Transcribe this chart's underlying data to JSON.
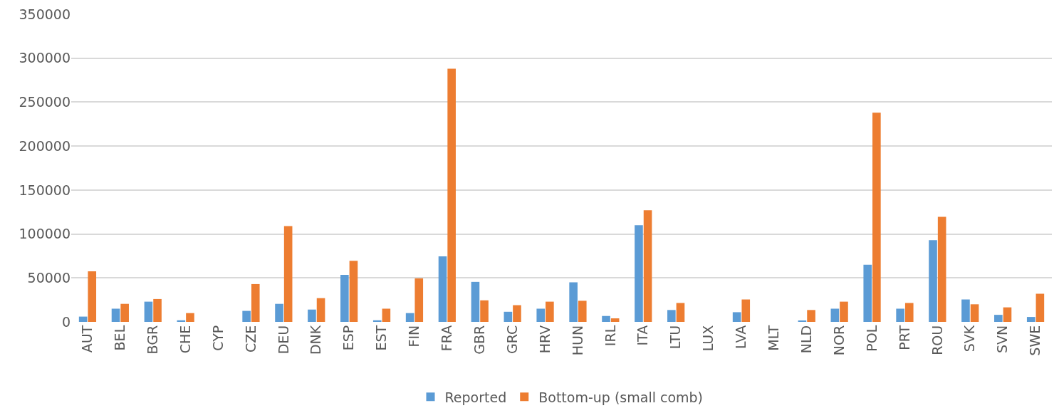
{
  "chart_data": {
    "type": "bar",
    "categories": [
      "AUT",
      "BEL",
      "BGR",
      "CHE",
      "CYP",
      "CZE",
      "DEU",
      "DNK",
      "ESP",
      "EST",
      "FIN",
      "FRA",
      "GBR",
      "GRC",
      "HRV",
      "HUN",
      "IRL",
      "ITA",
      "LTU",
      "LUX",
      "LVA",
      "MLT",
      "NLD",
      "NOR",
      "POL",
      "PRT",
      "ROU",
      "SVK",
      "SVN",
      "SWE"
    ],
    "series": [
      {
        "name": "Reported",
        "color": "#5b9bd5",
        "values": [
          6000,
          15000,
          23000,
          1800,
          0,
          12500,
          20500,
          14000,
          53500,
          1800,
          10000,
          74500,
          45500,
          11500,
          15000,
          45000,
          6700,
          110000,
          13500,
          0,
          11000,
          0,
          1500,
          15000,
          65000,
          15000,
          93000,
          25500,
          8000,
          5600
        ]
      },
      {
        "name": "Bottom-up (small comb)",
        "color": "#ed7d31",
        "values": [
          57500,
          20500,
          26000,
          10000,
          0,
          43000,
          109000,
          27000,
          69500,
          15000,
          49500,
          288000,
          24500,
          19000,
          23000,
          24000,
          4000,
          127000,
          21500,
          0,
          25500,
          0,
          13500,
          23000,
          238000,
          21500,
          119500,
          20000,
          16500,
          32000
        ]
      }
    ],
    "ylim": [
      0,
      350000
    ],
    "yticks": [
      0,
      50000,
      100000,
      150000,
      200000,
      250000,
      300000,
      350000
    ],
    "grid": "y",
    "legend": "bottom"
  }
}
